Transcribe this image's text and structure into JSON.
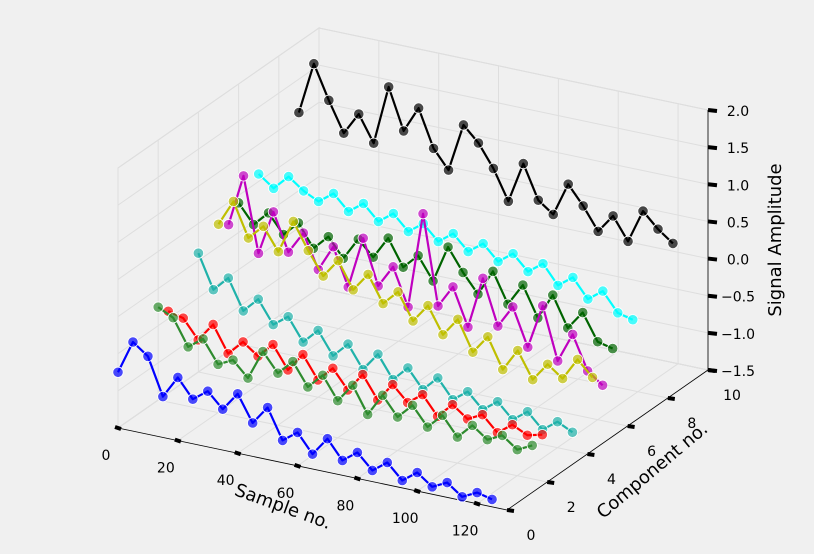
{
  "chart_data": {
    "type": "line3d",
    "title": "",
    "xlabel": "Sample no.",
    "ylabel": "Component no.",
    "zlabel": "Signal Amplitude",
    "xlim": [
      0,
      130
    ],
    "ylim": [
      0,
      10
    ],
    "zlim": [
      -1.5,
      2.0
    ],
    "xticks": [
      "0",
      "20",
      "40",
      "60",
      "80",
      "100",
      "120"
    ],
    "yticks": [
      "0",
      "2",
      "4",
      "6",
      "8",
      "10"
    ],
    "zticks": [
      "−1.5",
      "−1.0",
      "−0.5",
      "0.0",
      "0.5",
      "1.0",
      "1.5",
      "2.0"
    ],
    "grid": true,
    "markers": "circle",
    "series": [
      {
        "component": 0,
        "color": "#0000ff",
        "x": [
          0,
          5,
          10,
          15,
          20,
          25,
          30,
          35,
          40,
          45,
          50,
          55,
          60,
          65,
          70,
          75,
          80,
          85,
          90,
          95,
          100,
          105,
          110,
          115,
          120,
          125
        ],
        "z": [
          -0.75,
          -0.3,
          -0.45,
          -0.95,
          -0.65,
          -0.9,
          -0.75,
          -0.95,
          -0.7,
          -1.05,
          -0.8,
          -1.2,
          -1.05,
          -1.3,
          -1.05,
          -1.3,
          -1.15,
          -1.35,
          -1.2,
          -1.4,
          -1.25,
          -1.4,
          -1.3,
          -1.45,
          -1.35,
          -1.4
        ]
      },
      {
        "component": 2,
        "color": "#2e8b2e",
        "x": [
          0,
          5,
          10,
          15,
          20,
          25,
          30,
          35,
          40,
          45,
          50,
          55,
          60,
          65,
          70,
          75,
          80,
          85,
          90,
          95,
          100,
          105,
          110,
          115,
          120,
          125
        ],
        "z": [
          -0.25,
          -0.35,
          -0.7,
          -0.55,
          -0.85,
          -0.75,
          -0.95,
          -0.55,
          -0.8,
          -0.6,
          -0.9,
          -0.7,
          -1.0,
          -0.75,
          -1.1,
          -0.8,
          -1.05,
          -0.85,
          -1.1,
          -0.9,
          -1.15,
          -0.95,
          -1.1,
          -1.0,
          -1.15,
          -1.05
        ]
      },
      {
        "component": 2.5,
        "color": "#ff0000",
        "x": [
          0,
          5,
          10,
          15,
          20,
          25,
          30,
          35,
          40,
          45,
          50,
          55,
          60,
          65,
          70,
          75,
          80,
          85,
          90,
          95,
          100,
          105,
          110,
          115,
          120,
          125
        ],
        "z": [
          -0.4,
          -0.45,
          -0.7,
          -0.45,
          -0.8,
          -0.6,
          -0.75,
          -0.55,
          -0.85,
          -0.6,
          -0.9,
          -0.7,
          -0.95,
          -0.7,
          -1.0,
          -0.75,
          -0.95,
          -0.8,
          -1.05,
          -0.85,
          -1.0,
          -0.9,
          -1.1,
          -0.95,
          -1.05,
          -1.0
        ]
      },
      {
        "component": 4,
        "color": "#20b2aa",
        "x": [
          0,
          5,
          10,
          15,
          20,
          25,
          30,
          35,
          40,
          45,
          50,
          55,
          60,
          65,
          70,
          75,
          80,
          85,
          90,
          95,
          100,
          105,
          110,
          115,
          120,
          125
        ],
        "z": [
          0.1,
          -0.35,
          -0.15,
          -0.55,
          -0.35,
          -0.65,
          -0.5,
          -0.8,
          -0.6,
          -0.9,
          -0.7,
          -1.0,
          -0.75,
          -1.05,
          -0.85,
          -1.1,
          -0.9,
          -1.15,
          -1.0,
          -1.2,
          -1.05,
          -1.25,
          -1.1,
          -1.3,
          -1.15,
          -1.25
        ]
      },
      {
        "component": 5,
        "color": "#bfbf00",
        "x": [
          0,
          5,
          10,
          15,
          20,
          25,
          30,
          35,
          40,
          45,
          50,
          55,
          60,
          65,
          70,
          75,
          80,
          85,
          90,
          95,
          100,
          105,
          110,
          115,
          120,
          125
        ],
        "z": [
          0.3,
          0.65,
          0.2,
          0.4,
          0.1,
          0.55,
          0.2,
          -0.1,
          0.15,
          -0.2,
          0.05,
          -0.3,
          -0.1,
          -0.45,
          -0.2,
          -0.55,
          -0.3,
          -0.7,
          -0.45,
          -0.85,
          -0.55,
          -0.9,
          -0.65,
          -0.8,
          -0.5,
          -0.7
        ]
      },
      {
        "component": 5.5,
        "color": "#bf00bf",
        "x": [
          0,
          5,
          10,
          15,
          20,
          25,
          30,
          35,
          40,
          45,
          50,
          55,
          60,
          65,
          70,
          75,
          80,
          85,
          90,
          95,
          100,
          105,
          110,
          115,
          120,
          125
        ],
        "z": [
          0.2,
          0.9,
          -0.1,
          0.5,
          0.0,
          0.3,
          -0.15,
          0.2,
          -0.3,
          0.4,
          -0.2,
          0.1,
          -0.4,
          0.9,
          -0.3,
          0.0,
          -0.5,
          0.2,
          -0.4,
          -0.1,
          -0.6,
          0.0,
          -0.7,
          -0.3,
          -0.75,
          -0.9
        ]
      },
      {
        "component": 6,
        "color": "#006400",
        "x": [
          0,
          5,
          10,
          15,
          20,
          25,
          30,
          35,
          40,
          45,
          50,
          55,
          60,
          65,
          70,
          75,
          80,
          85,
          90,
          95,
          100,
          105,
          110,
          115,
          120,
          125
        ],
        "z": [
          0.4,
          0.15,
          0.35,
          0.1,
          0.3,
          0.0,
          0.2,
          -0.05,
          0.25,
          0.05,
          0.35,
          0.0,
          0.2,
          -0.1,
          0.4,
          0.1,
          -0.15,
          0.2,
          -0.2,
          0.1,
          -0.3,
          0.05,
          -0.35,
          -0.1,
          -0.45,
          -0.5
        ]
      },
      {
        "component": 7,
        "color": "#00ffff",
        "x": [
          0,
          5,
          10,
          15,
          20,
          25,
          30,
          35,
          40,
          45,
          50,
          55,
          60,
          65,
          70,
          75,
          80,
          85,
          90,
          95,
          100,
          105,
          110,
          115,
          120,
          125
        ],
        "z": [
          0.6,
          0.45,
          0.65,
          0.5,
          0.4,
          0.55,
          0.35,
          0.5,
          0.3,
          0.45,
          0.25,
          0.4,
          0.2,
          0.35,
          0.15,
          0.3,
          0.1,
          0.25,
          0.05,
          0.2,
          -0.05,
          0.1,
          -0.15,
          0.0,
          -0.25,
          -0.3
        ]
      },
      {
        "component": 9,
        "color": "#000000",
        "x": [
          0,
          5,
          10,
          15,
          20,
          25,
          30,
          35,
          40,
          45,
          50,
          55,
          60,
          65,
          70,
          75,
          80,
          85,
          90,
          95,
          100,
          105,
          110,
          115,
          120,
          125
        ],
        "z": [
          1.05,
          1.75,
          1.3,
          0.9,
          1.2,
          0.85,
          1.65,
          1.1,
          1.45,
          0.95,
          0.7,
          1.35,
          1.15,
          0.85,
          0.45,
          1.0,
          0.55,
          0.4,
          0.85,
          0.6,
          0.3,
          0.55,
          0.25,
          0.7,
          0.5,
          0.35
        ]
      }
    ]
  }
}
